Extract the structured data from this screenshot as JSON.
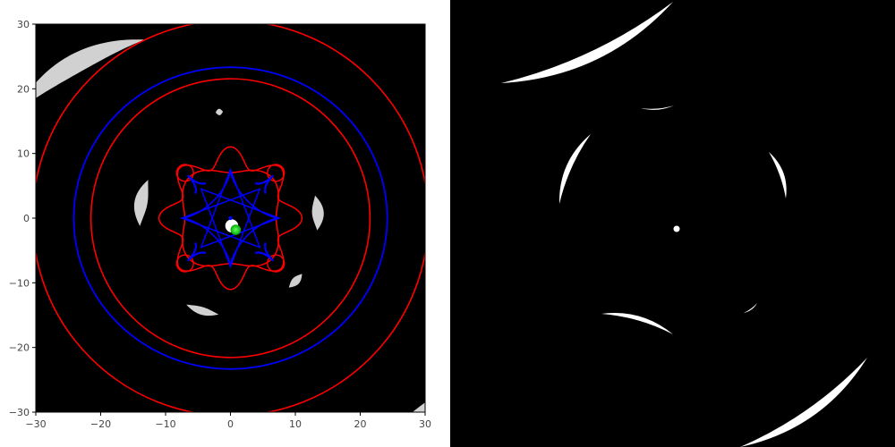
{
  "chart_data": [
    {
      "type": "contour-overlay",
      "title": "",
      "xlabel": "",
      "ylabel": "",
      "xlim": [
        -30,
        30
      ],
      "ylim": [
        -30,
        30
      ],
      "x_ticks": [
        -30,
        -20,
        -10,
        0,
        10,
        20,
        30
      ],
      "y_ticks": [
        -30,
        -20,
        -10,
        0,
        10,
        20,
        30
      ],
      "grid": false,
      "background": "#000000",
      "colors": {
        "critical_curves": "#ff0000",
        "caustics": "#0000ff",
        "source": "#00cc00",
        "images": "#ffffff"
      },
      "layers": {
        "critical_curves": {
          "outer_radius": 30.5,
          "ring_radius": 21.5,
          "inner_lobes": [
            {
              "radius": 9.5,
              "modulation": 0.16,
              "folds": 8
            },
            {
              "radius": 8.0,
              "modulation": 0.12,
              "folds": 4
            }
          ],
          "small_loops": [
            {
              "x": -7,
              "y": 7,
              "r": 1.3
            },
            {
              "x": 7,
              "y": 7,
              "r": 1.3
            },
            {
              "x": -7,
              "y": -7,
              "r": 1.3
            },
            {
              "x": 7,
              "y": -7,
              "r": 1.3
            }
          ]
        },
        "caustics": {
          "outer_radius": 23.8,
          "inner_astroid_arm": 7.5,
          "inner_star_arm": 7.5,
          "small_cusps": [
            {
              "x": -5,
              "y": 5
            },
            {
              "x": 5,
              "y": 5
            },
            {
              "x": -5,
              "y": -5
            },
            {
              "x": 5,
              "y": -5
            }
          ]
        },
        "source": {
          "x": 0.8,
          "y": -1.8,
          "radius": 0.8
        },
        "lensed_images": [
          {
            "cx": -8,
            "cy": -5,
            "rx": 33,
            "ry": 1.5,
            "start_deg": 99,
            "end_deg": 140
          },
          {
            "cx": 0,
            "cy": 0,
            "rx": 16.5,
            "ry": 0.5,
            "start_deg": 94,
            "end_deg": 98
          },
          {
            "cx": 0,
            "cy": 0,
            "rx": 14,
            "ry": 1.0,
            "start_deg": 155,
            "end_deg": 185
          },
          {
            "cx": 0,
            "cy": 0,
            "rx": 13.5,
            "ry": 0.9,
            "start_deg": -8,
            "end_deg": 15
          },
          {
            "cx": 0,
            "cy": 0,
            "rx": 15,
            "ry": 0.6,
            "start_deg": 243,
            "end_deg": 263
          },
          {
            "cx": 0,
            "cy": 0,
            "rx": 14,
            "ry": 0.6,
            "start_deg": 310,
            "end_deg": 322
          },
          {
            "cx": 5,
            "cy": 3,
            "rx": 42,
            "ry": 1.8,
            "start_deg": 290,
            "end_deg": 325
          },
          {
            "cx": 0,
            "cy": 0,
            "rx": 0.5,
            "ry": 0.5,
            "start_deg": 0,
            "end_deg": 360,
            "center_x": 0.2,
            "center_y": -1.2
          }
        ]
      }
    },
    {
      "type": "binary-mask",
      "title": "",
      "axes_visible": false,
      "background": "#000000",
      "foreground": "#ffffff",
      "blobs": [
        {
          "x1": 560,
          "y1": 93,
          "x2": 752,
          "y2": 2,
          "bulge": 18,
          "bulge_sign": 1
        },
        {
          "x1": 716,
          "y1": 121,
          "x2": 753,
          "y2": 118,
          "bulge": 2,
          "bulge_sign": 1
        },
        {
          "x1": 660,
          "y1": 150,
          "x2": 625,
          "y2": 228,
          "bulge": 10,
          "bulge_sign": 1
        },
        {
          "x1": 859,
          "y1": 170,
          "x2": 878,
          "y2": 222,
          "bulge": 8,
          "bulge_sign": -1
        },
        {
          "x1": 672,
          "y1": 351,
          "x2": 752,
          "y2": 374,
          "bulge": 8,
          "bulge_sign": -1
        },
        {
          "x1": 831,
          "y1": 350,
          "x2": 846,
          "y2": 339,
          "bulge": 2,
          "bulge_sign": 1
        },
        {
          "x1": 969,
          "y1": 400,
          "x2": 827,
          "y2": 500,
          "bulge": 16,
          "bulge_sign": -1
        }
      ],
      "dot": {
        "x": 756,
        "y": 256,
        "r": 3.5
      }
    }
  ]
}
